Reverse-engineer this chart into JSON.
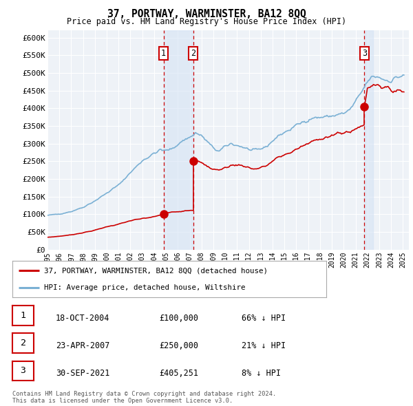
{
  "title": "37, PORTWAY, WARMINSTER, BA12 8QQ",
  "subtitle": "Price paid vs. HM Land Registry's House Price Index (HPI)",
  "ylabel_ticks": [
    "£0",
    "£50K",
    "£100K",
    "£150K",
    "£200K",
    "£250K",
    "£300K",
    "£350K",
    "£400K",
    "£450K",
    "£500K",
    "£550K",
    "£600K"
  ],
  "ytick_values": [
    0,
    50000,
    100000,
    150000,
    200000,
    250000,
    300000,
    350000,
    400000,
    450000,
    500000,
    550000,
    600000
  ],
  "xlim_start": 1995.0,
  "xlim_end": 2025.5,
  "ylim_min": 0,
  "ylim_max": 620000,
  "transactions": [
    {
      "label": "1",
      "date_num": 2004.79,
      "price": 100000
    },
    {
      "label": "2",
      "date_num": 2007.31,
      "price": 250000
    },
    {
      "label": "3",
      "date_num": 2021.75,
      "price": 405251
    }
  ],
  "legend_entries": [
    {
      "label": "37, PORTWAY, WARMINSTER, BA12 8QQ (detached house)",
      "color": "#cc0000",
      "lw": 2
    },
    {
      "label": "HPI: Average price, detached house, Wiltshire",
      "color": "#7ab0d4",
      "lw": 2
    }
  ],
  "table_rows": [
    {
      "num": "1",
      "date": "18-OCT-2004",
      "price": "£100,000",
      "hpi": "66% ↓ HPI"
    },
    {
      "num": "2",
      "date": "23-APR-2007",
      "price": "£250,000",
      "hpi": "21% ↓ HPI"
    },
    {
      "num": "3",
      "date": "30-SEP-2021",
      "price": "£405,251",
      "hpi": "8% ↓ HPI"
    }
  ],
  "footer": "Contains HM Land Registry data © Crown copyright and database right 2024.\nThis data is licensed under the Open Government Licence v3.0.",
  "bg_color": "#ffffff",
  "plot_bg_color": "#eef2f7",
  "grid_color": "#ffffff",
  "shade_color": "#d6e4f5"
}
